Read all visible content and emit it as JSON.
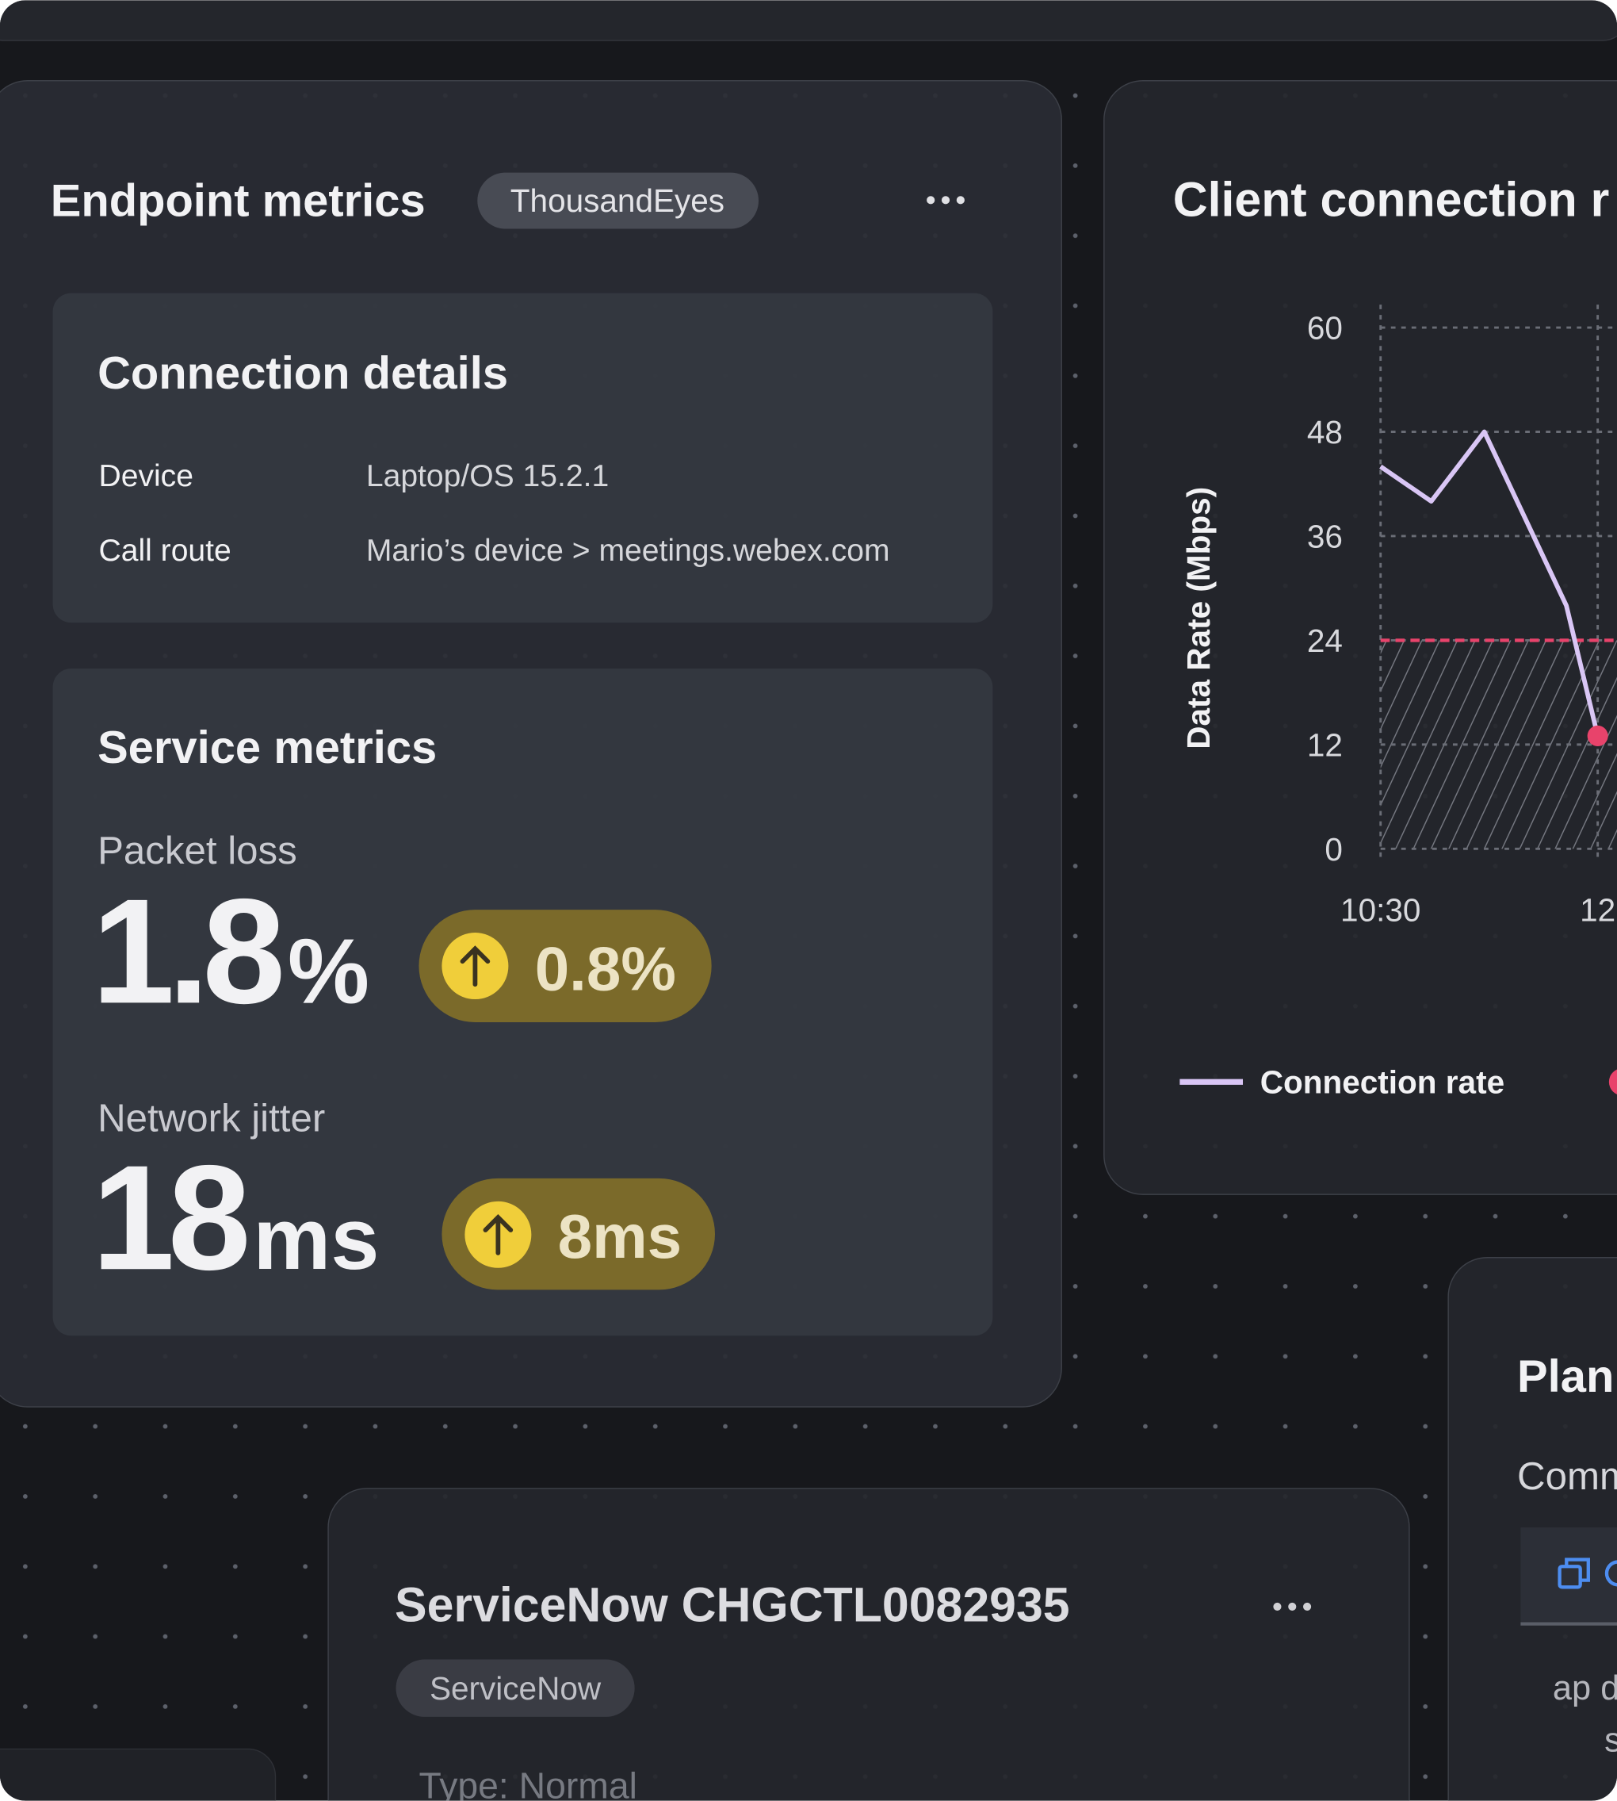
{
  "endpoint_card": {
    "title": "Endpoint metrics",
    "badge": "ThousandEyes",
    "connection_details": {
      "title": "Connection details",
      "rows": [
        [
          "Device",
          "Laptop/OS 15.2.1"
        ],
        [
          "Call route",
          "Mario’s device > meetings.webex.com"
        ]
      ]
    },
    "service_metrics": {
      "title": "Service metrics",
      "metrics": [
        {
          "label": "Packet loss",
          "value": "1.8",
          "unit": "%",
          "change": "0.8%"
        },
        {
          "label": "Network jitter",
          "value": "18",
          "unit": "ms",
          "change": "8ms"
        }
      ]
    }
  },
  "chart_data": {
    "type": "line",
    "title": "Client connection r",
    "y_label": "Data Rate (Mbps)",
    "x": [
      630,
      651,
      673,
      707,
      720
    ],
    "series": [
      {
        "name": "Connection rate",
        "color": "#d9c6f5",
        "values": [
          44,
          40,
          48,
          28,
          13
        ]
      }
    ],
    "threshold": 24,
    "threshold_color": "#e8436b",
    "xlim": [
      630,
      728
    ],
    "xticks": [
      {
        "value": 630,
        "label": "10:30"
      },
      {
        "value": 720,
        "label": "12"
      }
    ],
    "ylim": [
      0,
      60
    ],
    "yticks": [
      0,
      12,
      24,
      36,
      48,
      60
    ],
    "grid": true
  },
  "servicenow_card": {
    "title": "ServiceNow CHGCTL0082935",
    "badge": "ServiceNow",
    "type": "Type: Normal"
  },
  "plan_card": {
    "title": "Plan",
    "subtitle": "Comm",
    "body": [
      "ap d",
      "s"
    ]
  }
}
